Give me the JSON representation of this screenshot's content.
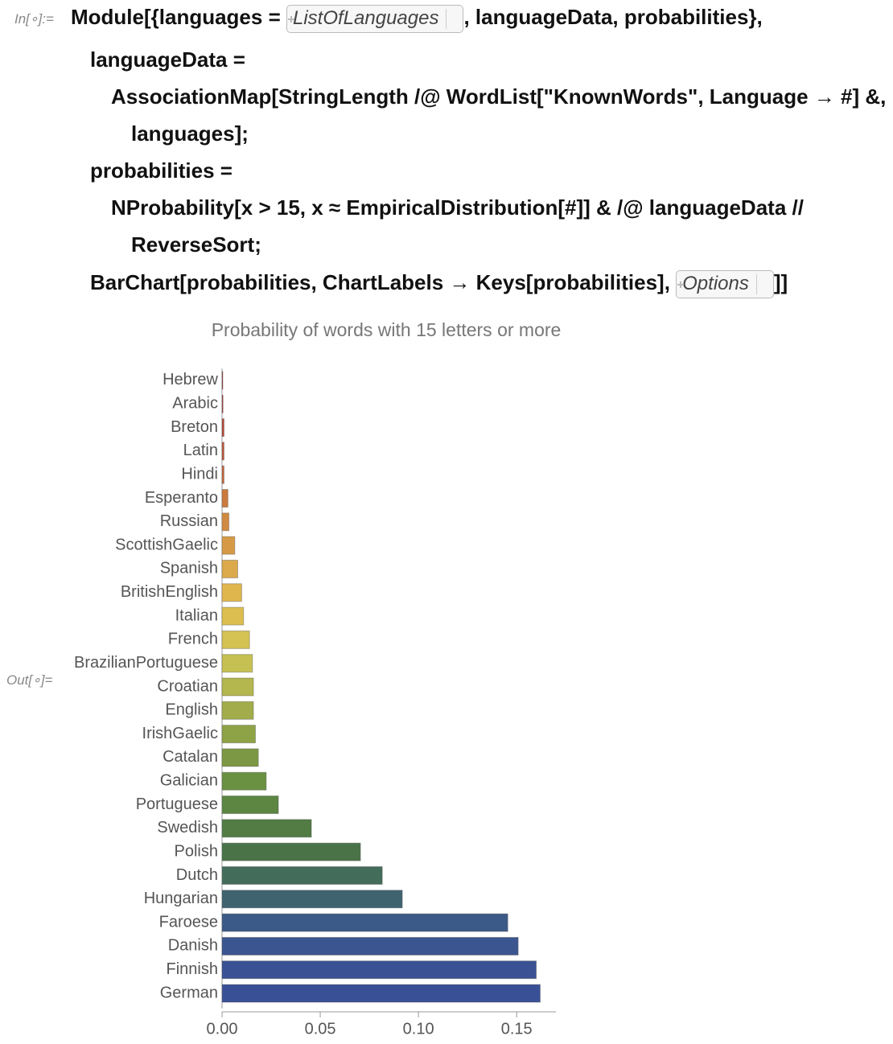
{
  "input_label": "In[∘]:=",
  "output_label": "Out[∘]=",
  "code": [
    {
      "before": "Module[{languages = ",
      "box": "ListOfLanguages",
      "after": ", languageData, probabilities},"
    },
    {
      "before": "languageData ="
    },
    {
      "before": "AssociationMap[StringLength /@ WordList[\"KnownWords\", Language → #] &,"
    },
    {
      "before": "languages];"
    },
    {
      "before": "probabilities ="
    },
    {
      "before": "NProbability[x > 15, x ≈ EmpiricalDistribution[#]] & /@ languageData //"
    },
    {
      "before": "ReverseSort;"
    },
    {
      "before": "BarChart[probabilities, ChartLabels → Keys[probabilities], ",
      "box": "Options",
      "after": "]]"
    }
  ],
  "chart_data": {
    "type": "barh",
    "title": "Probability of words with 15 letters or more",
    "categories": [
      "Hebrew",
      "Arabic",
      "Breton",
      "Latin",
      "Hindi",
      "Esperanto",
      "Russian",
      "ScottishGaelic",
      "Spanish",
      "BritishEnglish",
      "Italian",
      "French",
      "BrazilianPortuguese",
      "Croatian",
      "English",
      "IrishGaelic",
      "Catalan",
      "Galician",
      "Portuguese",
      "Swedish",
      "Polish",
      "Dutch",
      "Hungarian",
      "Faroese",
      "Danish",
      "Finnish",
      "German"
    ],
    "values": [
      0.0004,
      0.0005,
      0.001,
      0.001,
      0.001,
      0.003,
      0.0035,
      0.0065,
      0.008,
      0.01,
      0.011,
      0.014,
      0.0155,
      0.016,
      0.016,
      0.017,
      0.0185,
      0.0225,
      0.0287,
      0.0455,
      0.0705,
      0.0816,
      0.0918,
      0.1455,
      0.1508,
      0.16,
      0.162
    ],
    "colors": [
      "#a83232",
      "#b03c34",
      "#b84a36",
      "#bf5838",
      "#c6663a",
      "#cc7a3e",
      "#d18a42",
      "#d69a46",
      "#dcaa4a",
      "#dfb64e",
      "#dcbe50",
      "#d4c252",
      "#c6c052",
      "#b4b64e",
      "#a2ac4a",
      "#8ea246",
      "#7c9844",
      "#6a9042",
      "#5c8642",
      "#527c44",
      "#4a7448",
      "#446c5a",
      "#3f6470",
      "#3c5a88",
      "#3b5590",
      "#3a5294",
      "#3a5096"
    ],
    "xlim": [
      0,
      0.17
    ],
    "xticks": [
      {
        "value": 0,
        "label": "0.00"
      },
      0.05,
      {
        "value": 0.1,
        "label": "0.10"
      },
      0.15
    ]
  }
}
